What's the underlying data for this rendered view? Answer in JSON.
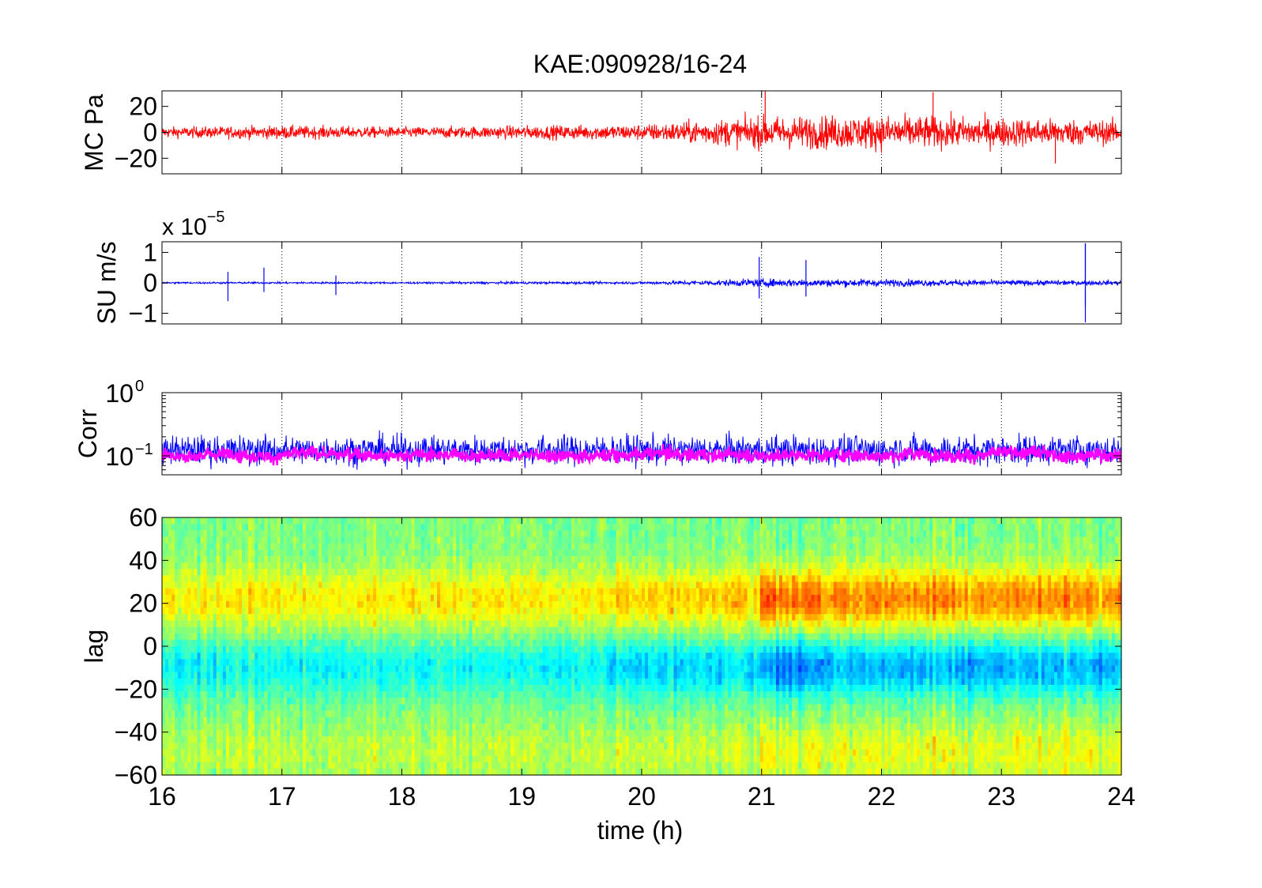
{
  "figure": {
    "title": "KAE:090928/16-24",
    "xlabel": "time (h)"
  },
  "chart_data": [
    {
      "type": "line",
      "panel": "MC",
      "ylabel": "MC Pa",
      "xlim": [
        16,
        24
      ],
      "ylim": [
        -32,
        32
      ],
      "x_ticks": [
        "16",
        "17",
        "18",
        "19",
        "20",
        "21",
        "22",
        "23",
        "24"
      ],
      "y_ticks": [
        "-20",
        "0",
        "20"
      ],
      "x_grid": "vertical dotted",
      "color": "#ff0000",
      "amplitude_envelope": {
        "x": [
          16,
          17,
          18,
          19,
          20,
          21,
          22,
          23,
          24
        ],
        "y": [
          4,
          5,
          4,
          5,
          6,
          12,
          13,
          11,
          9
        ]
      },
      "spikes": [
        {
          "x": 21.03,
          "y": 32
        },
        {
          "x": 22.43,
          "y": 31
        },
        {
          "x": 23.45,
          "y": -24
        }
      ]
    },
    {
      "type": "line",
      "panel": "SU",
      "ylabel": "SU m/s",
      "scale_label": "x 10",
      "scale_exponent": "−5",
      "xlim": [
        16,
        24
      ],
      "ylim": [
        -1.35,
        1.35
      ],
      "x_ticks": [
        "16",
        "17",
        "18",
        "19",
        "20",
        "21",
        "22",
        "23",
        "24"
      ],
      "y_ticks": [
        "-1",
        "0",
        "1"
      ],
      "x_grid": "vertical dotted",
      "color": "#0000ff",
      "amplitude_envelope": {
        "x": [
          16,
          17,
          18,
          19,
          20,
          21,
          22,
          23,
          24
        ],
        "y": [
          0.03,
          0.03,
          0.03,
          0.04,
          0.04,
          0.13,
          0.12,
          0.09,
          0.07
        ]
      },
      "spikes": [
        {
          "x": 16.55,
          "y": -0.6
        },
        {
          "x": 16.85,
          "y": 0.5
        },
        {
          "x": 17.45,
          "y": -0.4
        },
        {
          "x": 20.98,
          "y": 0.85
        },
        {
          "x": 21.37,
          "y": 0.75
        },
        {
          "x": 23.7,
          "y": 1.3
        }
      ]
    },
    {
      "type": "line",
      "panel": "Corr",
      "ylabel": "Corr",
      "xlim": [
        16,
        24
      ],
      "ylim": [
        0.05,
        1
      ],
      "yscale": "log",
      "x_ticks": [
        "16",
        "17",
        "18",
        "19",
        "20",
        "21",
        "22",
        "23",
        "24"
      ],
      "y_ticks": [
        {
          "base": "10",
          "exp": "0",
          "value": 1
        },
        {
          "base": "10",
          "exp": "−1",
          "value": 0.1
        }
      ],
      "x_grid": "vertical dotted",
      "series": [
        {
          "color": "#0000ff",
          "range": [
            0.05,
            0.3
          ]
        },
        {
          "color": "#ff00ff",
          "range": [
            0.07,
            0.16
          ]
        }
      ]
    },
    {
      "type": "heatmap",
      "panel": "lag",
      "ylabel": "lag",
      "xlim": [
        16,
        24
      ],
      "ylim": [
        -60,
        60
      ],
      "x_ticks": [
        "16",
        "17",
        "18",
        "19",
        "20",
        "21",
        "22",
        "23",
        "24"
      ],
      "y_ticks": [
        "60",
        "40",
        "20",
        "0",
        "-20",
        "-40",
        "-60"
      ],
      "colormap": "jet",
      "bands": [
        {
          "lag": 20,
          "value": "high",
          "strongest_x": [
            21.0,
            24.0
          ]
        },
        {
          "lag": -10,
          "value": "low"
        },
        {
          "lag": -50,
          "value": "moderate-high"
        }
      ]
    }
  ]
}
